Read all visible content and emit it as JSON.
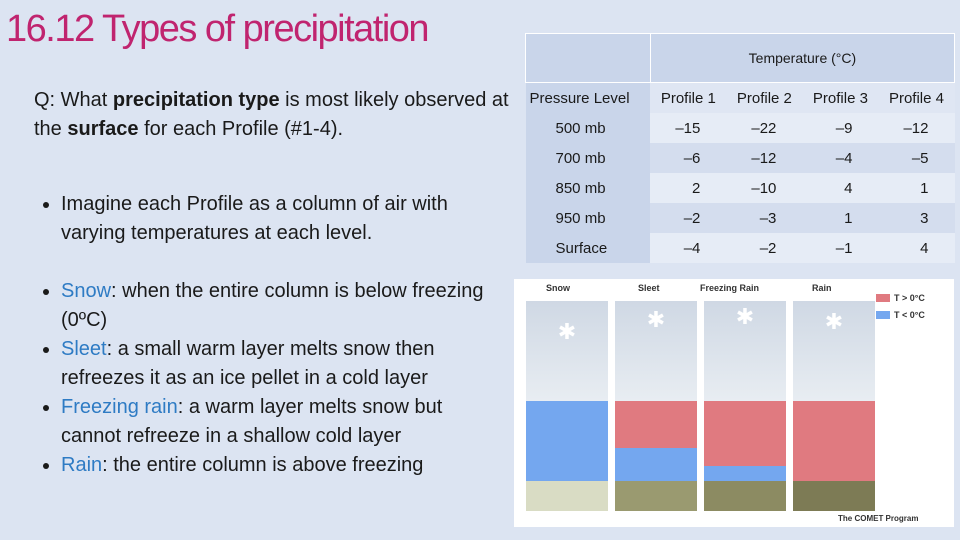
{
  "slide": {
    "title": "16.12 Types of precipitation",
    "question": {
      "prefix": "Q: What ",
      "bold1": "precipitation type",
      "mid": " is most likely observed at the ",
      "bold2": "surface",
      "suffix": " for each Profile (#1-4)."
    },
    "intro_bullet": "Imagine each Profile as a column of air with varying temperatures at each level.",
    "definitions": [
      {
        "term": "Snow",
        "text": ": when the entire column is below freezing (0ºC)"
      },
      {
        "term": "Sleet",
        "text": ": a small warm layer melts snow then refreezes it as an ice pellet in a cold layer"
      },
      {
        "term": "Freezing rain",
        "text": ": a warm layer melts snow but cannot refreeze in a shallow cold layer"
      },
      {
        "term": "Rain",
        "text": ": the entire column is above freezing"
      }
    ]
  },
  "table": {
    "group_header": "Temperature (°C)",
    "columns": [
      "Pressure Level",
      "Profile 1",
      "Profile 2",
      "Profile 3",
      "Profile 4"
    ],
    "rows": [
      {
        "level": "500 mb",
        "values": [
          "–15",
          "–22",
          "–9",
          "–12"
        ]
      },
      {
        "level": "700 mb",
        "values": [
          "–6",
          "–12",
          "–4",
          "–5"
        ]
      },
      {
        "level": "850 mb",
        "values": [
          "2",
          "–10",
          "4",
          "1"
        ]
      },
      {
        "level": "950 mb",
        "values": [
          "–2",
          "–3",
          "1",
          "3"
        ]
      },
      {
        "level": "Surface",
        "values": [
          "–4",
          "–2",
          "–1",
          "4"
        ]
      }
    ]
  },
  "figure": {
    "panel_labels": [
      "Snow",
      "Sleet",
      "Freezing Rain",
      "Rain"
    ],
    "legend": [
      {
        "label": "T > 0°C",
        "color": "#e07a80"
      },
      {
        "label": "T < 0°C",
        "color": "#74a7ef"
      }
    ],
    "credit": "The COMET Program"
  }
}
